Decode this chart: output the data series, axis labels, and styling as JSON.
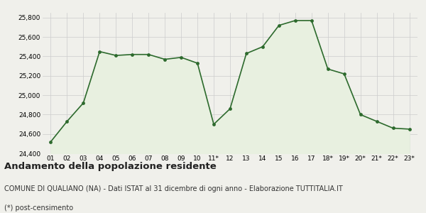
{
  "x_labels": [
    "01",
    "02",
    "03",
    "04",
    "05",
    "06",
    "07",
    "08",
    "09",
    "10",
    "11*",
    "12",
    "13",
    "14",
    "15",
    "16",
    "17",
    "18*",
    "19*",
    "20*",
    "21*",
    "22*",
    "23*"
  ],
  "y_values": [
    24520,
    24730,
    24920,
    25450,
    25410,
    25420,
    25420,
    25370,
    25390,
    25330,
    24700,
    24860,
    25430,
    25500,
    25720,
    25770,
    25770,
    25270,
    25220,
    24800,
    24730,
    24660,
    24650
  ],
  "line_color": "#2d6a2d",
  "fill_color": "#e8f0e0",
  "marker_color": "#2d6a2d",
  "background_color": "#f0f0eb",
  "grid_color": "#cccccc",
  "ylim": [
    24400,
    25850
  ],
  "yticks": [
    24400,
    24600,
    24800,
    25000,
    25200,
    25400,
    25600,
    25800
  ],
  "title": "Andamento della popolazione residente",
  "subtitle": "COMUNE DI QUALIANO (NA) - Dati ISTAT al 31 dicembre di ogni anno - Elaborazione TUTTITALIA.IT",
  "footnote": "(*) post-censimento",
  "title_fontsize": 9.5,
  "subtitle_fontsize": 7,
  "footnote_fontsize": 7,
  "axis_fontsize": 6.5
}
